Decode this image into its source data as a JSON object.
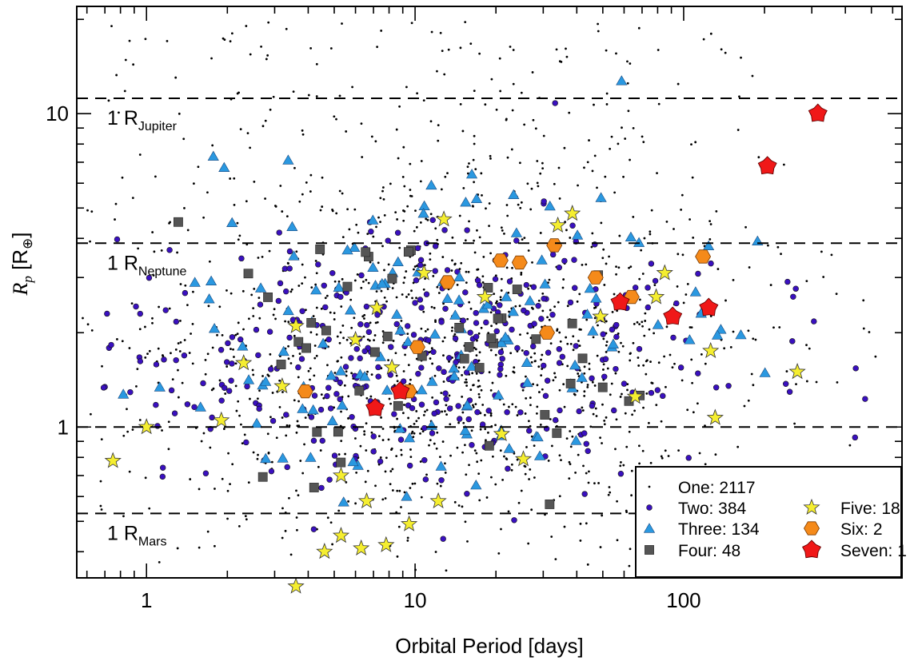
{
  "chart_data": {
    "type": "scatter",
    "xlabel": "Orbital Period [days]",
    "ylabel": "R_p [R⊕]",
    "xscale": "log",
    "yscale": "log",
    "xlim": [
      0.55,
      650
    ],
    "ylim": [
      0.33,
      22
    ],
    "grid": false,
    "legend_position": "bottom-right",
    "x_tick_labels": [
      {
        "value": 1,
        "label": "1"
      },
      {
        "value": 10,
        "label": "10"
      },
      {
        "value": 100,
        "label": "100"
      }
    ],
    "y_tick_labels": [
      {
        "value": 1,
        "label": "1"
      },
      {
        "value": 10,
        "label": "10"
      }
    ],
    "reference_lines": [
      {
        "name": "jupiter",
        "y": 11.2,
        "label": "1 R",
        "sub": "Jupiter"
      },
      {
        "name": "neptune",
        "y": 3.86,
        "label": "1 R",
        "sub": "Neptune"
      },
      {
        "name": "earth",
        "y": 1.0,
        "label": "",
        "sub": ""
      },
      {
        "name": "mars",
        "y": 0.53,
        "label": "1 R",
        "sub": "Mars"
      }
    ],
    "series": [
      {
        "name": "One",
        "count_label": "One: 2117",
        "marker": "dot",
        "color": "#000000",
        "count": 1500,
        "center": [
          12,
          1.6
        ],
        "spread": [
          1.25,
          0.62
        ],
        "points": []
      },
      {
        "name": "Two",
        "count_label": "Two: 384",
        "marker": "circle",
        "color": "#3a10c0",
        "count": 384,
        "center": [
          11,
          1.7
        ],
        "spread": [
          1.1,
          0.42
        ],
        "points": []
      },
      {
        "name": "Three",
        "count_label": "Three: 134",
        "marker": "triangle",
        "color": "#2a98e0",
        "count": 134,
        "center": [
          10,
          1.9
        ],
        "spread": [
          1.1,
          0.5
        ],
        "points": []
      },
      {
        "name": "Four",
        "count_label": "Four: 48",
        "marker": "square",
        "color": "#555555",
        "count": 48,
        "center": [
          9,
          1.8
        ],
        "spread": [
          1.0,
          0.45
        ],
        "points": []
      },
      {
        "name": "Five",
        "count_label": "Five: 18",
        "marker": "star",
        "color": "#f5ee30",
        "count": 0,
        "points": [
          [
            0.75,
            0.78
          ],
          [
            1.0,
            1.0
          ],
          [
            1.9,
            1.05
          ],
          [
            2.3,
            1.6
          ],
          [
            3.2,
            1.35
          ],
          [
            3.6,
            2.1
          ],
          [
            5.3,
            0.7
          ],
          [
            5.3,
            0.45
          ],
          [
            4.6,
            0.4
          ],
          [
            6.0,
            1.9
          ],
          [
            6.6,
            0.58
          ],
          [
            7.2,
            2.4
          ],
          [
            8.2,
            1.55
          ],
          [
            9.5,
            0.49
          ],
          [
            10.8,
            3.1
          ],
          [
            12.2,
            0.58
          ],
          [
            12.8,
            4.6
          ],
          [
            18.2,
            2.6
          ],
          [
            21.0,
            0.95
          ],
          [
            25.3,
            0.79
          ],
          [
            34,
            4.4
          ],
          [
            38.5,
            4.8
          ],
          [
            49,
            2.25
          ],
          [
            66,
            1.25
          ],
          [
            79,
            2.6
          ],
          [
            85,
            3.1
          ],
          [
            126,
            1.75
          ],
          [
            131,
            1.07
          ],
          [
            265,
            1.5
          ],
          [
            3.6,
            0.31
          ],
          [
            7.8,
            0.42
          ],
          [
            6.3,
            0.41
          ]
        ]
      },
      {
        "name": "Six",
        "count_label": "Six: 2",
        "marker": "hexagon",
        "color": "#f58a1a",
        "count": 0,
        "points": [
          [
            3.9,
            1.3
          ],
          [
            10.2,
            1.8
          ],
          [
            13.2,
            2.9
          ],
          [
            20.8,
            3.4
          ],
          [
            24.5,
            3.35
          ],
          [
            31,
            2.0
          ],
          [
            33,
            3.8
          ],
          [
            47,
            3.0
          ],
          [
            64,
            2.6
          ],
          [
            118,
            3.5
          ],
          [
            9.5,
            1.3
          ]
        ]
      },
      {
        "name": "Seven",
        "count_label": "Seven: 1",
        "marker": "heptagon",
        "color": "#f01818",
        "count": 0,
        "points": [
          [
            7.1,
            1.15
          ],
          [
            8.8,
            1.3
          ],
          [
            58,
            2.5
          ],
          [
            91,
            2.25
          ],
          [
            124,
            2.4
          ],
          [
            205,
            6.8
          ],
          [
            316,
            10.0
          ]
        ]
      }
    ],
    "legend": {
      "entries": [
        {
          "series": "One",
          "label": "One: 2117",
          "col": 0,
          "row": 0
        },
        {
          "series": "Two",
          "label": "Two: 384",
          "col": 0,
          "row": 1
        },
        {
          "series": "Three",
          "label": "Three: 134",
          "col": 0,
          "row": 2
        },
        {
          "series": "Four",
          "label": "Four: 48",
          "col": 0,
          "row": 3
        },
        {
          "series": "Five",
          "label": "Five: 18",
          "col": 1,
          "row": 1
        },
        {
          "series": "Six",
          "label": "Six: 2",
          "col": 1,
          "row": 2
        },
        {
          "series": "Seven",
          "label": "Seven: 1",
          "col": 1,
          "row": 3
        }
      ]
    }
  }
}
